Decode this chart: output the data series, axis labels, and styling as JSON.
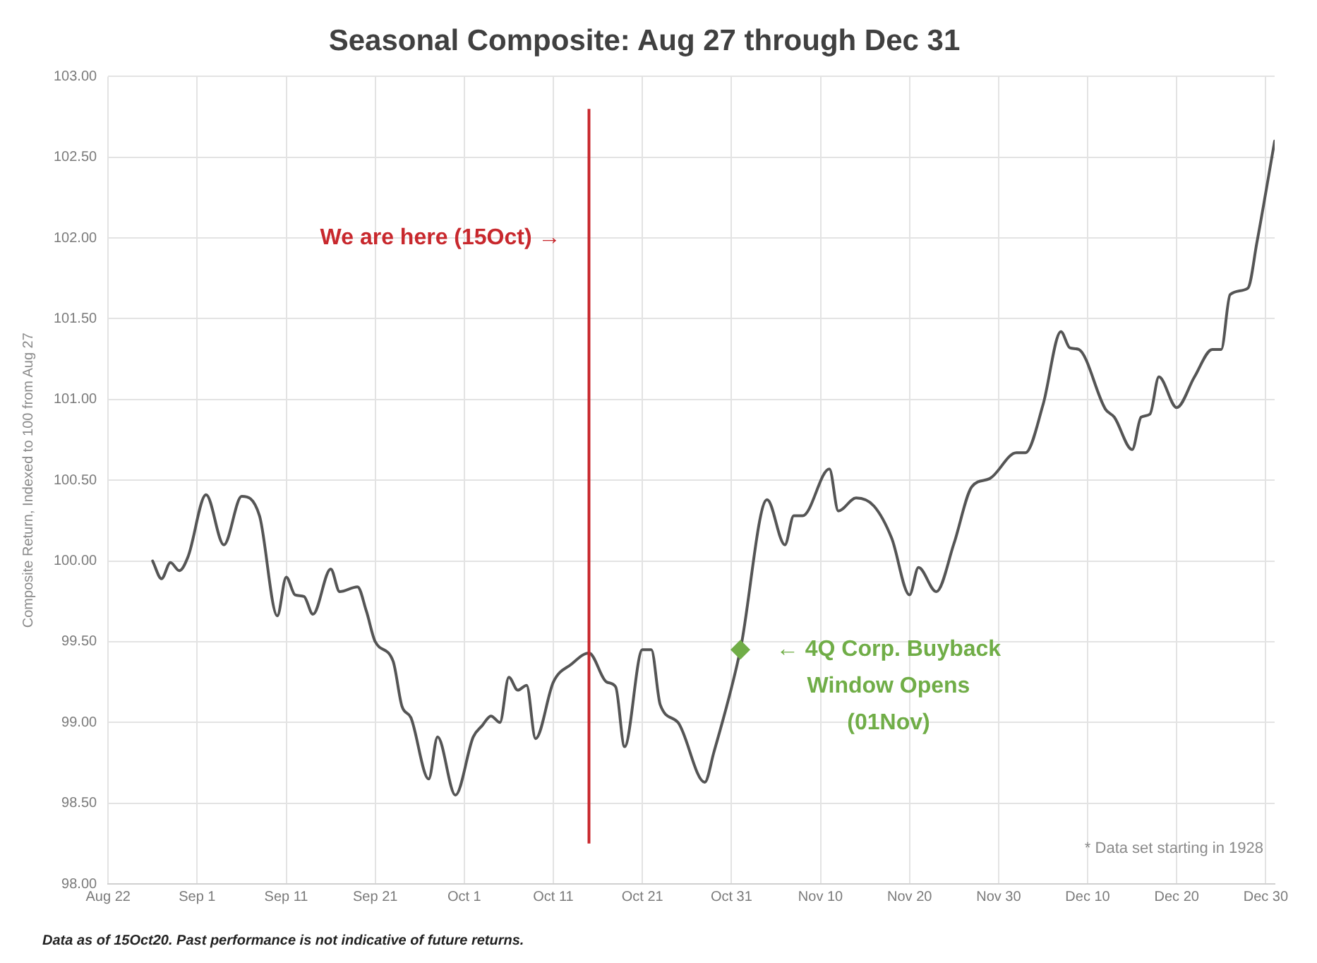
{
  "chart_data": {
    "type": "line",
    "title": "Seasonal Composite: Aug 27 through Dec 31",
    "ylabel": "Composite Return, Indexed to 100 from Aug 27",
    "x": [
      "--08-27",
      "--08-28",
      "--08-29",
      "--08-30",
      "--08-31",
      "--09-02",
      "--09-04",
      "--09-06",
      "--09-08",
      "--09-10",
      "--09-11",
      "--09-12",
      "--09-13",
      "--09-14",
      "--09-16",
      "--09-17",
      "--09-19",
      "--09-20",
      "--09-21",
      "--09-23",
      "--09-24",
      "--09-25",
      "--09-27",
      "--09-28",
      "--09-30",
      "--10-02",
      "--10-03",
      "--10-04",
      "--10-05",
      "--10-06",
      "--10-07",
      "--10-08",
      "--10-09",
      "--10-11",
      "--10-13",
      "--10-15",
      "--10-17",
      "--10-18",
      "--10-19",
      "--10-21",
      "--10-22",
      "--10-23",
      "--10-25",
      "--10-28",
      "--10-29",
      "--11-01",
      "--11-04",
      "--11-06",
      "--11-07",
      "--11-08",
      "--11-11",
      "--11-12",
      "--11-14",
      "--11-16",
      "--11-18",
      "--11-20",
      "--11-21",
      "--11-23",
      "--11-25",
      "--11-27",
      "--11-29",
      "--12-02",
      "--12-03",
      "--12-05",
      "--12-07",
      "--12-08",
      "--12-09",
      "--12-12",
      "--12-13",
      "--12-15",
      "--12-16",
      "--12-17",
      "--12-18",
      "--12-20",
      "--12-22",
      "--12-24",
      "--12-25",
      "--12-26",
      "--12-28",
      "--12-29",
      "--12-31"
    ],
    "series": [
      {
        "color": "#555555",
        "values": [
          100.0,
          99.89,
          99.99,
          99.94,
          100.03,
          100.41,
          100.1,
          100.4,
          100.28,
          99.66,
          99.9,
          99.79,
          99.78,
          99.67,
          99.95,
          99.81,
          99.84,
          99.69,
          99.5,
          99.38,
          99.1,
          99.03,
          98.65,
          98.91,
          98.55,
          98.91,
          98.98,
          99.04,
          99.0,
          99.28,
          99.2,
          99.23,
          98.9,
          99.25,
          99.36,
          99.43,
          99.25,
          99.22,
          98.85,
          99.45,
          99.45,
          99.11,
          99.0,
          98.63,
          98.81,
          99.45,
          100.38,
          100.1,
          100.28,
          100.28,
          100.57,
          100.31,
          100.39,
          100.34,
          100.14,
          99.79,
          99.96,
          99.81,
          100.11,
          100.46,
          100.51,
          100.67,
          100.67,
          100.97,
          101.42,
          101.32,
          101.31,
          100.94,
          100.89,
          100.69,
          100.89,
          100.91,
          101.14,
          100.95,
          101.14,
          101.31,
          101.31,
          101.65,
          101.69,
          101.97,
          102.6
        ]
      }
    ],
    "xlim": [
      "--08-22",
      "--12-31"
    ],
    "xticks": [
      {
        "value": "--08-22",
        "label": "Aug 22"
      },
      {
        "value": "--09-01",
        "label": "Sep 1"
      },
      {
        "value": "--09-11",
        "label": "Sep 11"
      },
      {
        "value": "--09-21",
        "label": "Sep 21"
      },
      {
        "value": "--10-01",
        "label": "Oct 1"
      },
      {
        "value": "--10-11",
        "label": "Oct 11"
      },
      {
        "value": "--10-21",
        "label": "Oct 21"
      },
      {
        "value": "--10-31",
        "label": "Oct 31"
      },
      {
        "value": "--11-10",
        "label": "Nov 10"
      },
      {
        "value": "--11-20",
        "label": "Nov 20"
      },
      {
        "value": "--11-30",
        "label": "Nov 30"
      },
      {
        "value": "--12-10",
        "label": "Dec 10"
      },
      {
        "value": "--12-20",
        "label": "Dec 20"
      },
      {
        "value": "--12-30",
        "label": "Dec 30"
      }
    ],
    "ylim": [
      98,
      103
    ],
    "yticks": [
      {
        "value": 98,
        "label": "98.00"
      },
      {
        "value": 98.5,
        "label": "98.50"
      },
      {
        "value": 99,
        "label": "99.00"
      },
      {
        "value": 99.5,
        "label": "99.50"
      },
      {
        "value": 100,
        "label": "100.00"
      },
      {
        "value": 100.5,
        "label": "100.50"
      },
      {
        "value": 101,
        "label": "101.00"
      },
      {
        "value": 101.5,
        "label": "101.50"
      },
      {
        "value": 102,
        "label": "102.00"
      },
      {
        "value": 102.5,
        "label": "102.50"
      },
      {
        "value": 103,
        "label": "103.00"
      }
    ],
    "ref_lines": [
      {
        "axis": "x",
        "value": "--10-15",
        "label": "We are here (15Oct) →",
        "color": "#c8282d"
      }
    ],
    "annotations": [
      {
        "text": "← 4Q Corp. Buyback Window Opens (01Nov)",
        "x": "--11-01",
        "y": 99.45
      },
      "* Data set starting in 1928",
      "Data as of 15Oct20. Past performance is not indicative of future returns."
    ],
    "grid": true,
    "legend": false,
    "marker": "none",
    "line_style": "solid"
  }
}
